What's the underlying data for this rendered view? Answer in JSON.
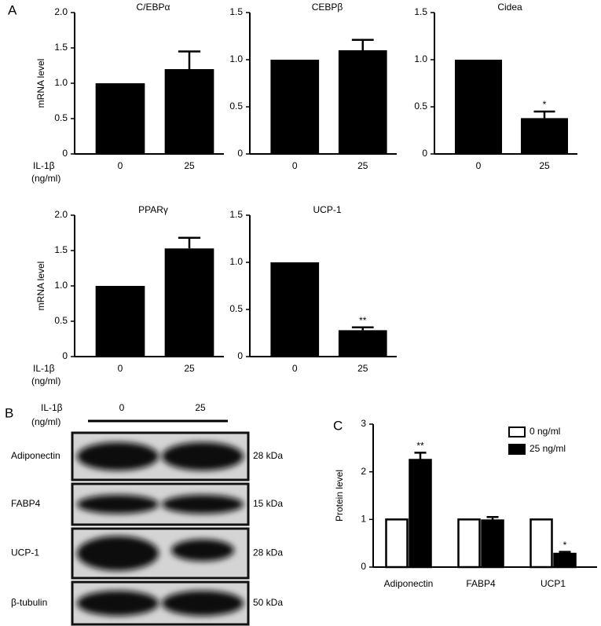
{
  "panel_labels": [
    "A",
    "B",
    "C"
  ],
  "chart_data": [
    {
      "type": "bar",
      "title": "C/EBPα",
      "ylabel": "mRNA level",
      "xlabel_lines": [
        "IL-1β",
        "(ng/ml)"
      ],
      "categories": [
        "0",
        "25"
      ],
      "values": [
        1.0,
        1.2
      ],
      "errors": [
        null,
        0.25
      ],
      "value_annotations": [
        null,
        null
      ],
      "color": "#000000",
      "ylim": [
        0,
        2
      ],
      "yticks": [
        0,
        0.5,
        {
          "value": 1,
          "label": "1.0"
        },
        1.5,
        {
          "value": 2,
          "label": "2.0"
        }
      ]
    },
    {
      "type": "bar",
      "title": "CEBPβ",
      "categories": [
        "0",
        "25"
      ],
      "values": [
        1.0,
        1.1
      ],
      "errors": [
        null,
        0.11
      ],
      "value_annotations": [
        null,
        null
      ],
      "color": "#000000",
      "ylim": [
        0,
        1.5
      ],
      "yticks": [
        0,
        0.5,
        {
          "value": 1,
          "label": "1.0"
        },
        1.5
      ]
    },
    {
      "type": "bar",
      "title": "Cidea",
      "categories": [
        "0",
        "25"
      ],
      "values": [
        1.0,
        0.38
      ],
      "errors": [
        null,
        0.07
      ],
      "value_annotations": [
        null,
        "*"
      ],
      "color": "#000000",
      "ylim": [
        0,
        1.5
      ],
      "yticks": [
        0,
        0.5,
        {
          "value": 1,
          "label": "1.0"
        },
        1.5
      ]
    },
    {
      "type": "bar",
      "title": "PPARγ",
      "ylabel": "mRNA level",
      "xlabel_lines": [
        "IL-1β",
        "(ng/ml)"
      ],
      "categories": [
        "0",
        "25"
      ],
      "values": [
        1.0,
        1.53
      ],
      "errors": [
        null,
        0.15
      ],
      "value_annotations": [
        null,
        null
      ],
      "color": "#000000",
      "ylim": [
        0,
        2
      ],
      "yticks": [
        0,
        0.5,
        {
          "value": 1,
          "label": "1.0"
        },
        1.5,
        {
          "value": 2,
          "label": "2.0"
        }
      ]
    },
    {
      "type": "bar",
      "title": "UCP-1",
      "categories": [
        "0",
        "25"
      ],
      "values": [
        1.0,
        0.28
      ],
      "errors": [
        null,
        0.03
      ],
      "value_annotations": [
        null,
        "**"
      ],
      "color": "#000000",
      "ylim": [
        0,
        1.5
      ],
      "yticks": [
        0,
        0.5,
        {
          "value": 1,
          "label": "1.0"
        },
        1.5
      ]
    },
    {
      "type": "grouped_bar",
      "ylabel": "Protein level",
      "legend": "top-right",
      "categories": [
        "Adiponectin",
        "FABP4",
        "UCP1"
      ],
      "series": [
        {
          "name": "0 ng/ml",
          "color": "#ffffff",
          "values": [
            1,
            1,
            1
          ],
          "errors": [
            null,
            null,
            null
          ],
          "value_annotations": [
            null,
            null,
            null
          ]
        },
        {
          "name": "25 ng/ml",
          "color": "#000000",
          "values": [
            2.25,
            0.98,
            0.28
          ],
          "errors": [
            0.15,
            0.07,
            0.04
          ],
          "value_annotations": [
            "**",
            null,
            "*"
          ]
        }
      ],
      "ylim": [
        0,
        3
      ],
      "yticks": [
        0,
        1,
        2,
        3
      ]
    }
  ],
  "blot": {
    "treatment_lines": [
      "IL-1β",
      "(ng/ml)"
    ],
    "lanes": [
      "0",
      "25"
    ],
    "rows": [
      {
        "protein": "Adiponectin",
        "size": "28 kDa"
      },
      {
        "protein": "FABP4",
        "size": "15 kDa"
      },
      {
        "protein": "UCP-1",
        "size": "28 kDa"
      },
      {
        "protein": "β-tubulin",
        "size": "50 kDa"
      }
    ]
  }
}
